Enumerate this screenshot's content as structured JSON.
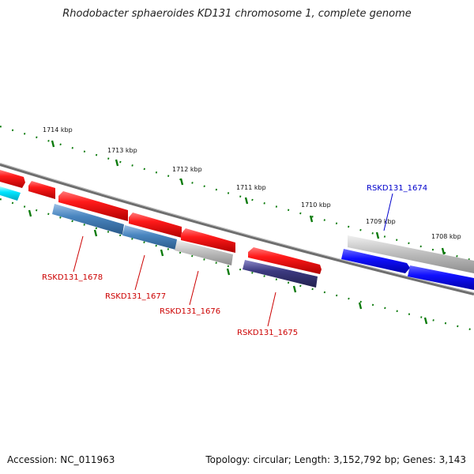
{
  "title": "Rhodobacter sphaeroides KD131 chromosome 1, complete genome",
  "footer": {
    "accession": "Accession: NC_011963",
    "summary": "Topology: circular; Length: 3,152,792 bp; Genes: 3,143"
  },
  "colors": {
    "forward_gene": "#ff1a1a",
    "reverse_gene": "#4a86c0",
    "highlight_gene": "#1a1aff",
    "cyan_gene": "#00e5ff",
    "purple_gene": "#3c3a80",
    "pseudo_gene": "#bdbdbd",
    "backbone": "#777777",
    "tick": "#0a7a0a",
    "label_red": "#cc0000",
    "label_blue": "#0000cc"
  },
  "ticks": [
    {
      "label": "1714 kbp"
    },
    {
      "label": "1713 kbp"
    },
    {
      "label": "1712 kbp"
    },
    {
      "label": "1711 kbp"
    },
    {
      "label": "1710 kbp"
    },
    {
      "label": "1709 kbp"
    },
    {
      "label": "1708 kbp"
    }
  ],
  "gene_labels": [
    {
      "id": "RSKD131_1678",
      "color": "red"
    },
    {
      "id": "RSKD131_1677",
      "color": "red"
    },
    {
      "id": "RSKD131_1676",
      "color": "red"
    },
    {
      "id": "RSKD131_1675",
      "color": "red"
    },
    {
      "id": "RSKD131_1674",
      "color": "blue"
    }
  ]
}
